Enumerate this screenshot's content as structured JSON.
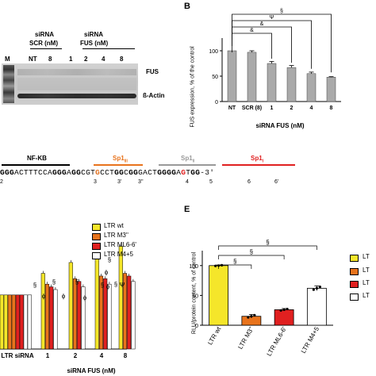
{
  "panels": {
    "blot": {
      "marker_label": "M",
      "group_scr": [
        "siRNA",
        "SCR (nM)"
      ],
      "group_fus": [
        "siRNA",
        "FUS (nM)"
      ],
      "lanes": [
        "NT",
        "8",
        "1",
        "2",
        "4",
        "8"
      ],
      "band_fus": "FUS",
      "band_actin": "ß-Actin"
    },
    "B": {
      "letter": "B",
      "ylabel": "FUS expression, % of the control",
      "xlabel": "siRNA FUS (nM)",
      "sig_symbols": [
        "§",
        "Ψ",
        "&",
        "&"
      ]
    },
    "sequence": {
      "sites": [
        "NF-KB",
        "Sp1III",
        "Sp1II",
        "Sp1I"
      ],
      "seq_parts": [
        {
          "t": "GGG",
          "b": true,
          "c": "#000000"
        },
        {
          "t": "ACTTTCCA",
          "b": false,
          "c": "#000000"
        },
        {
          "t": "GGG",
          "b": true,
          "c": "#000000"
        },
        {
          "t": "A",
          "b": false,
          "c": "#000000"
        },
        {
          "t": "GG",
          "b": true,
          "c": "#000000"
        },
        {
          "t": "CGT",
          "b": false,
          "c": "#000000"
        },
        {
          "t": "G",
          "b": true,
          "c": "#e07020"
        },
        {
          "t": "CCT",
          "b": false,
          "c": "#000000"
        },
        {
          "t": "GG",
          "b": true,
          "c": "#000000"
        },
        {
          "t": "C",
          "b": false,
          "c": "#000000"
        },
        {
          "t": "GG",
          "b": true,
          "c": "#000000"
        },
        {
          "t": "GACT",
          "b": false,
          "c": "#000000"
        },
        {
          "t": "GGGG",
          "b": true,
          "c": "#000000"
        },
        {
          "t": "A",
          "b": false,
          "c": "#000000"
        },
        {
          "t": "G",
          "b": true,
          "c": "#e02020"
        },
        {
          "t": "T",
          "b": false,
          "c": "#000000"
        },
        {
          "t": "GG",
          "b": true,
          "c": "#000000"
        },
        {
          "t": "-3'",
          "b": false,
          "c": "#000000"
        }
      ],
      "positions": [
        "2",
        "3",
        "3'",
        "3''",
        "4",
        "5",
        "6",
        "6'"
      ]
    },
    "D": {
      "legend": [
        "LTR wt",
        "LTR M3''",
        "LTR ML6-6'",
        "LTR M4+5"
      ],
      "xlabel": "siRNA FUS (nM)",
      "marks": [
        "§",
        "ϕ",
        "§",
        "ϕ",
        "§",
        "ϕ",
        "ϕ",
        "§",
        "ϕ",
        "§",
        "§",
        "Ψ"
      ]
    },
    "E": {
      "letter": "E",
      "ylabel": "RLU/protein content, % of control",
      "sig_symbols": [
        "§",
        "§",
        "§"
      ],
      "side_legend": [
        "LT",
        "LT",
        "LT",
        "LT"
      ]
    }
  },
  "series_colors": [
    "#f5e62a",
    "#e8731c",
    "#e02020",
    "#ffffff"
  ],
  "chart_data": [
    {
      "type": "bar",
      "panel": "B",
      "categories": [
        "NT",
        "SCR (8)",
        "1",
        "2",
        "4",
        "8"
      ],
      "values": [
        100,
        97,
        75,
        67,
        55,
        48
      ],
      "errors": [
        0,
        3,
        4,
        4,
        3,
        1
      ],
      "ylim": [
        0,
        125
      ],
      "yticks": [
        0,
        50,
        100
      ],
      "xlabel": "siRNA FUS (nM)",
      "ylabel": "FUS expression, % of the control",
      "color": "#aaaaaa"
    },
    {
      "type": "bar",
      "panel": "D",
      "categories": [
        "LTR siRNA",
        "1",
        "2",
        "4",
        "8"
      ],
      "series": [
        {
          "name": "LTR wt",
          "values": [
            100,
            140,
            160,
            170,
            190
          ]
        },
        {
          "name": "LTR M3''",
          "values": [
            100,
            120,
            130,
            135,
            140
          ]
        },
        {
          "name": "LTR ML6-6'",
          "values": [
            100,
            115,
            125,
            130,
            135
          ]
        },
        {
          "name": "LTR M4+5",
          "values": [
            100,
            110,
            115,
            120,
            125
          ]
        }
      ],
      "xlabel": "siRNA FUS (nM)"
    },
    {
      "type": "bar",
      "panel": "E",
      "categories": [
        "LTR wt",
        "LTR M3''",
        "LTR ML6-6'",
        "LTR M4+5"
      ],
      "values": [
        100,
        15,
        26,
        62
      ],
      "errors": [
        1,
        3,
        2,
        4
      ],
      "ylim": [
        0,
        125
      ],
      "yticks": [
        0,
        50,
        100
      ],
      "ylabel": "RLU/protein content, % of control",
      "colors": [
        "#f5e62a",
        "#e8731c",
        "#e02020",
        "#ffffff"
      ]
    }
  ]
}
